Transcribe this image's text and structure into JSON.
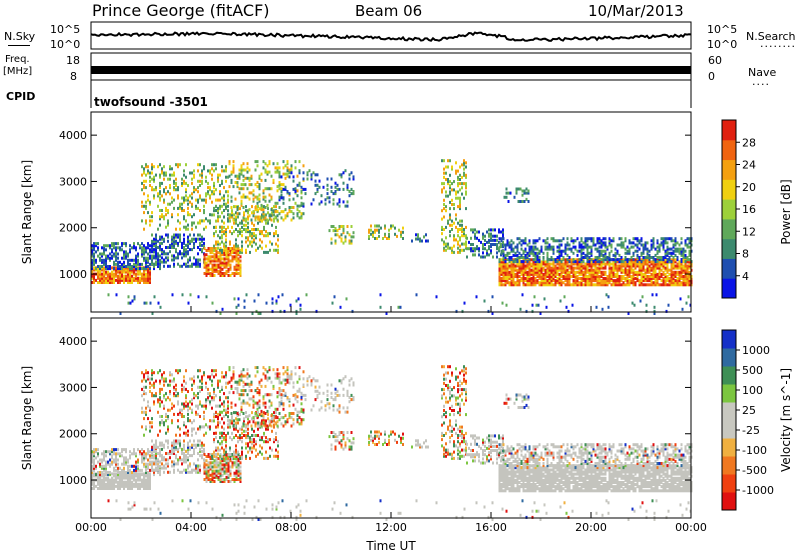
{
  "header": {
    "station": "Prince George (fitACF)",
    "beam": "Beam 06",
    "date": "10/Mar/2013"
  },
  "side_labels": {
    "nsky": "N.Sky",
    "freq_a": "Freq.",
    "freq_b": "[MHz]",
    "cpid": "CPID",
    "nsearch": "N.Search",
    "nave": "Nave",
    "dots1": "........",
    "dots2": "...."
  },
  "cpid_value": "twofsound  -3501",
  "small_axes": {
    "nsky_ticks": [
      "10^5",
      "10^0"
    ],
    "nsearch_ticks": [
      "10^5",
      "10^0"
    ],
    "freq_ticks": [
      "18",
      "8"
    ],
    "nave_ticks": [
      "60",
      "0"
    ]
  },
  "chart_data": [
    {
      "type": "heatmap",
      "panel": "power",
      "ylabel": "Slant Range [km]",
      "ylim": [
        180,
        4500
      ],
      "xlim": [
        "00:00",
        "24:00"
      ],
      "ytick_labels": [
        "1000",
        "2000",
        "3000",
        "4000"
      ],
      "colorbar": {
        "label": "Power [dB]",
        "ticks": [
          "4",
          "8",
          "12",
          "16",
          "20",
          "24",
          "28"
        ],
        "colors": [
          "#0a14e6",
          "#1f4fb0",
          "#3c8a6e",
          "#5fa85a",
          "#9dd03a",
          "#f0d010",
          "#f4a010",
          "#f06410",
          "#e02010"
        ]
      }
    },
    {
      "type": "heatmap",
      "panel": "velocity",
      "ylabel": "Slant Range [km]",
      "ylim": [
        180,
        4500
      ],
      "xlim": [
        "00:00",
        "24:00"
      ],
      "ytick_labels": [
        "1000",
        "2000",
        "3000",
        "4000"
      ],
      "colorbar": {
        "label": "Velocity [m s^-1]",
        "ticks": [
          "1000",
          "500",
          "100",
          "25",
          "-25",
          "-100",
          "-500",
          "-1000"
        ],
        "colors": [
          "#1530c8",
          "#2f6aa0",
          "#3e8f55",
          "#7cc640",
          "#c8c8c0",
          "#c8c8c0",
          "#f0b040",
          "#f07820",
          "#f04010",
          "#e01010"
        ]
      }
    }
  ],
  "xaxis": {
    "ticks": [
      "00:00",
      "04:00",
      "08:00",
      "12:00",
      "16:00",
      "20:00",
      "00:00"
    ],
    "label": "Time UT"
  },
  "colors": {
    "ground_scatter": "#c4c4be",
    "power_low": "#1d4cb5",
    "power_high": "#e02010"
  }
}
